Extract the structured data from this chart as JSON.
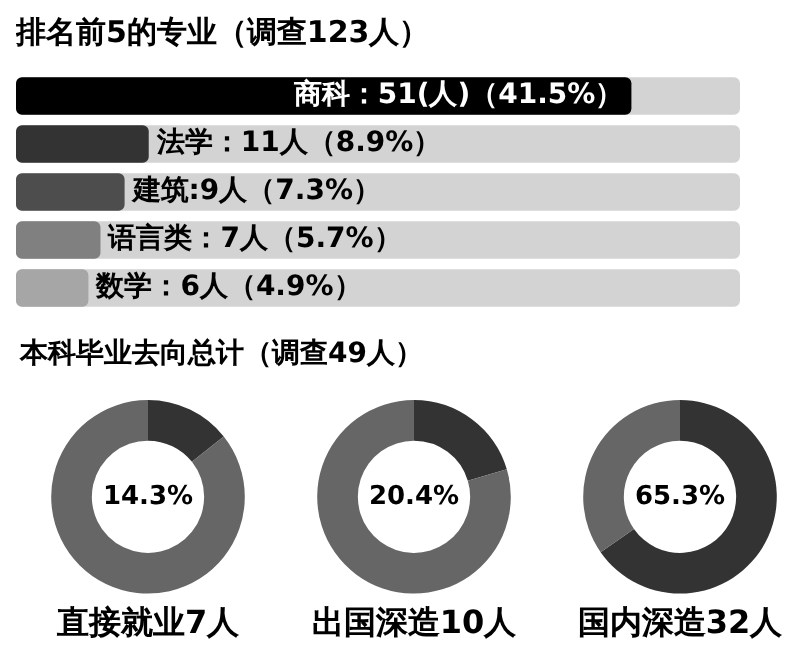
{
  "chart_data": [
    {
      "type": "bar",
      "orientation": "horizontal",
      "title": "排名前5的专业（调查123人）",
      "categories": [
        null,
        null,
        null,
        null,
        null
      ],
      "values": [
        51,
        11,
        9,
        7,
        6
      ],
      "colors": [
        "#000000",
        "#333333",
        "#4d4d4d",
        "#808080",
        "#a6a6a6"
      ],
      "value_labels": [
        "商科：51(人)（41.5%）",
        "法学：11人（8.9%）",
        "建筑:9人（7.3%）",
        "语言类：7人（5.7%）",
        "数学：6人（4.9%）"
      ],
      "tick_labels": false
    },
    {
      "type": "other",
      "title": "本科毕业去向总计（调查49人）"
    },
    {
      "type": "donut",
      "title": "直接就业7人",
      "categories": [
        null,
        null
      ],
      "values": [
        14.3,
        85.7
      ],
      "colors": [
        "#333333",
        "#666666"
      ],
      "value_labels": [
        "14.3%",
        null
      ]
    },
    {
      "type": "donut",
      "title": "出国深造10人",
      "categories": [
        null,
        null
      ],
      "values": [
        20.4,
        79.6
      ],
      "colors": [
        "#333333",
        "#666666"
      ],
      "value_labels": [
        "20.4%",
        null
      ]
    },
    {
      "type": "donut",
      "title": "国内深造32人",
      "categories": [
        null,
        null
      ],
      "values": [
        65.3,
        34.7
      ],
      "colors": [
        "#333333",
        "#666666"
      ],
      "value_labels": [
        "65.3%",
        null
      ]
    }
  ]
}
